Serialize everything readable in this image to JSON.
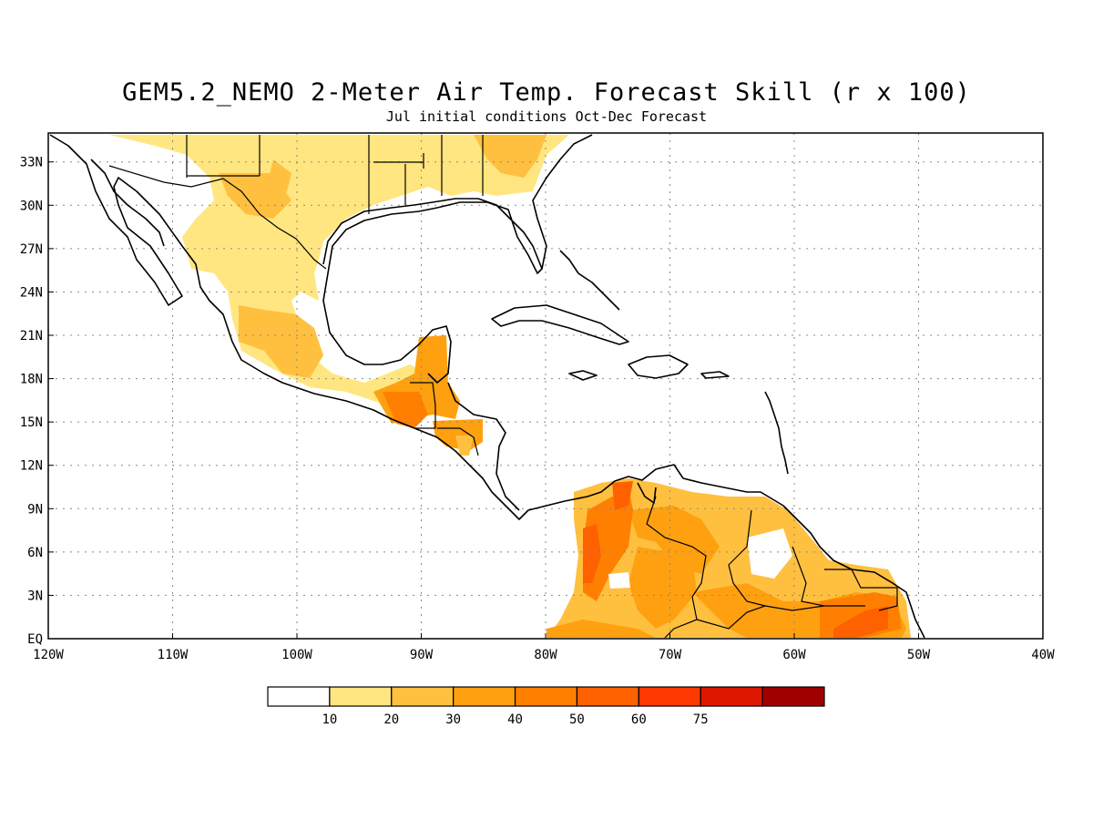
{
  "title": "GEM5.2_NEMO 2-Meter Air Temp. Forecast Skill (r x 100)",
  "subtitle": "Jul initial conditions  Oct-Dec Forecast",
  "lat_ticks": [
    "33N",
    "30N",
    "27N",
    "24N",
    "21N",
    "18N",
    "15N",
    "12N",
    "9N",
    "6N",
    "3N",
    "EQ"
  ],
  "lon_ticks": [
    "120W",
    "110W",
    "100W",
    "90W",
    "80W",
    "70W",
    "60W",
    "50W",
    "40W"
  ],
  "colors": {
    "c10": "#ffe680",
    "c20": "#ffc040",
    "c30": "#ffa010",
    "c40": "#ff8000",
    "c50": "#ff6000",
    "c60": "#ff3a00",
    "c75": "#dd1800",
    "c100": "#a00000"
  },
  "legend": {
    "labels": [
      "10",
      "20",
      "30",
      "40",
      "50",
      "60",
      "75"
    ],
    "colors": [
      "#ffffff",
      "#ffe680",
      "#ffc040",
      "#ffa010",
      "#ff8000",
      "#ff6000",
      "#ff3a00",
      "#dd1800",
      "#a00000"
    ]
  }
}
